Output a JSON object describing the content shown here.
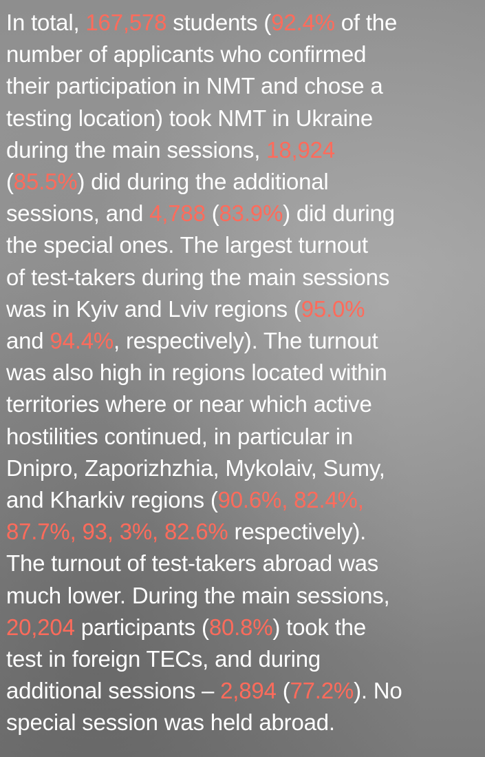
{
  "paragraph": {
    "lines": [
      [
        {
          "text": "In total, "
        },
        {
          "text": "167,578",
          "color": "#ff6b5b"
        },
        {
          "text": " students ("
        },
        {
          "text": "92.4%",
          "color": "#ff6b5b"
        },
        {
          "text": " of the"
        }
      ],
      [
        {
          "text": "number of applicants who confirmed"
        }
      ],
      [
        {
          "text": "their participation in NMT and chose a"
        }
      ],
      [
        {
          "text": "testing location) took NMT in Ukraine"
        }
      ],
      [
        {
          "text": "during the main sessions, "
        },
        {
          "text": "18,924",
          "color": "#ff6b5b"
        }
      ],
      [
        {
          "text": "("
        },
        {
          "text": "85.5%",
          "color": "#ff6b5b"
        },
        {
          "text": ") did during the additional"
        }
      ],
      [
        {
          "text": "sessions, and "
        },
        {
          "text": "4,788",
          "color": "#ff6b5b"
        },
        {
          "text": " ("
        },
        {
          "text": "83.9%",
          "color": "#ff6b5b"
        },
        {
          "text": ") did during"
        }
      ],
      [
        {
          "text": "the special ones. The largest turnout"
        }
      ],
      [
        {
          "text": "of test-takers during the main sessions"
        }
      ],
      [
        {
          "text": "was in Kyiv and Lviv regions ("
        },
        {
          "text": "95.0%",
          "color": "#ff6b5b"
        }
      ],
      [
        {
          "text": "and "
        },
        {
          "text": "94.4%",
          "color": "#ff6b5b"
        },
        {
          "text": ", respectively). The turnout"
        }
      ],
      [
        {
          "text": "was also high in regions located within"
        }
      ],
      [
        {
          "text": "territories where or near which active"
        }
      ],
      [
        {
          "text": "hostilities continued, in particular in"
        }
      ],
      [
        {
          "text": "Dnipro, Zaporizhzhia, Mykolaiv, Sumy,"
        }
      ],
      [
        {
          "text": "and Kharkiv regions ("
        },
        {
          "text": "90.6%, 82.4%,",
          "color": "#ff6b5b"
        }
      ],
      [
        {
          "text": "87.7%, 93, 3%, 82.6%",
          "color": "#ff6b5b"
        },
        {
          "text": " respectively)."
        }
      ],
      [
        {
          "text": "The turnout of test-takers abroad was"
        }
      ],
      [
        {
          "text": "much lower. During the main sessions,"
        }
      ],
      [
        {
          "text": "20,204",
          "color": "#ff6b5b"
        },
        {
          "text": " participants ("
        },
        {
          "text": "80.8%",
          "color": "#ff6b5b"
        },
        {
          "text": ") took the"
        }
      ],
      [
        {
          "text": "test in foreign TECs, and during"
        }
      ],
      [
        {
          "text": "additional sessions – "
        },
        {
          "text": "2,894",
          "color": "#ff6b5b"
        },
        {
          "text": " ("
        },
        {
          "text": "77.2%",
          "color": "#ff6b5b"
        },
        {
          "text": "). No"
        }
      ],
      [
        {
          "text": "special session was held abroad."
        }
      ]
    ]
  }
}
